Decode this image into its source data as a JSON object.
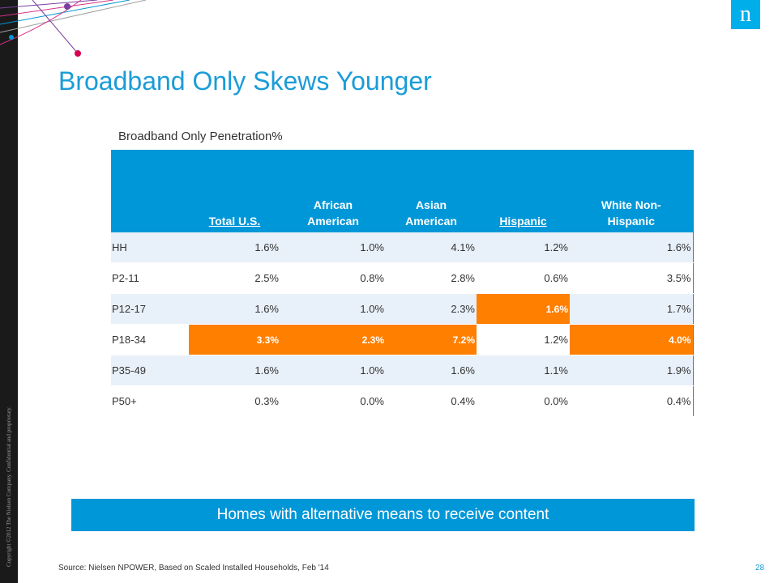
{
  "copyright": "Copyright ©2012 The Nielsen Company. Confidential and proprietary.",
  "logo_letter": "n",
  "title": "Broadband Only Skews Younger",
  "subtitle": "Broadband Only Penetration%",
  "table": {
    "headers": [
      "",
      "Total U.S.",
      "African American",
      "Asian American",
      "Hispanic",
      "White Non-Hispanic"
    ],
    "rows": [
      {
        "label": "HH",
        "values": [
          "1.6%",
          "1.0%",
          "4.1%",
          "1.2%",
          "1.6%"
        ],
        "highlight": [
          false,
          false,
          false,
          false,
          false
        ]
      },
      {
        "label": "P2-11",
        "values": [
          "2.5%",
          "0.8%",
          "2.8%",
          "0.6%",
          "3.5%"
        ],
        "highlight": [
          false,
          false,
          false,
          false,
          false
        ]
      },
      {
        "label": "P12-17",
        "values": [
          "1.6%",
          "1.0%",
          "2.3%",
          "1.6%",
          "1.7%"
        ],
        "highlight": [
          false,
          false,
          false,
          true,
          false
        ]
      },
      {
        "label": "P18-34",
        "values": [
          "3.3%",
          "2.3%",
          "7.2%",
          "1.2%",
          "4.0%"
        ],
        "highlight": [
          true,
          true,
          true,
          false,
          true
        ]
      },
      {
        "label": "P35-49",
        "values": [
          "1.6%",
          "1.0%",
          "1.6%",
          "1.1%",
          "1.9%"
        ],
        "highlight": [
          false,
          false,
          false,
          false,
          false
        ]
      },
      {
        "label": "P50+",
        "values": [
          "0.3%",
          "0.0%",
          "0.4%",
          "0.0%",
          "0.4%"
        ],
        "highlight": [
          false,
          false,
          false,
          false,
          false
        ]
      }
    ]
  },
  "banner": "Homes with alternative means to receive content",
  "source": "Source:   Nielsen NPOWER, Based on Scaled Installed Households, Feb '14",
  "page_number": "28",
  "colors": {
    "accent": "#0097d8",
    "highlight": "#ff7f00",
    "title": "#1a9cd8",
    "row_tint": "#e8f0f9"
  }
}
